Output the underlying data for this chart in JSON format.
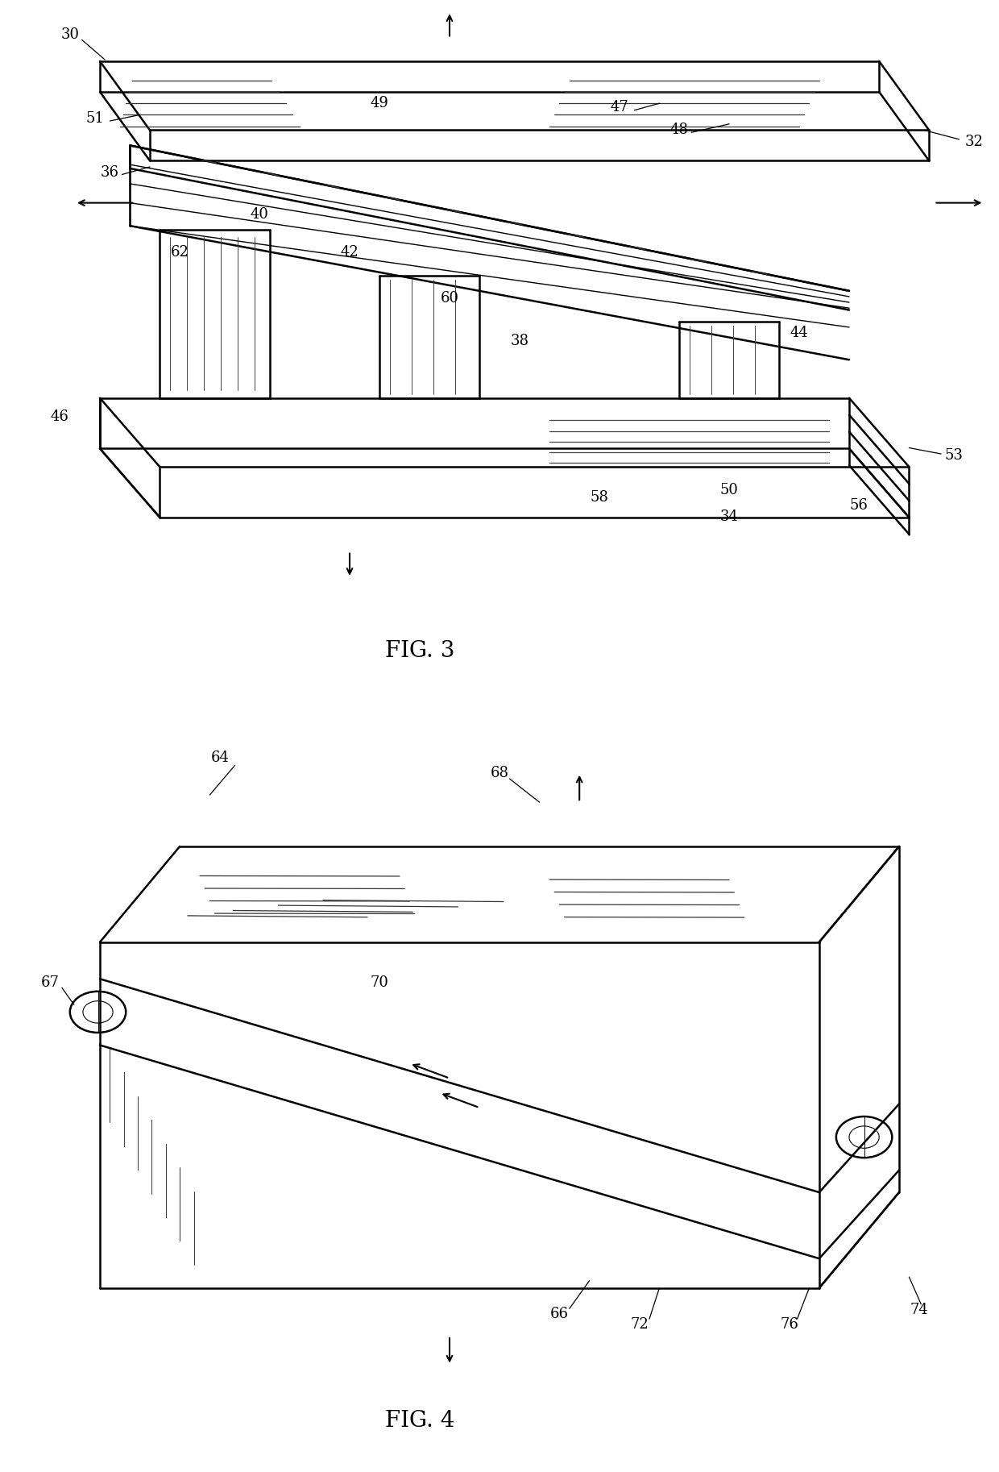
{
  "background_color": "#ffffff",
  "line_color": "#000000",
  "line_width": 1.8,
  "label_fontsize": 13,
  "title_fontsize": 20
}
